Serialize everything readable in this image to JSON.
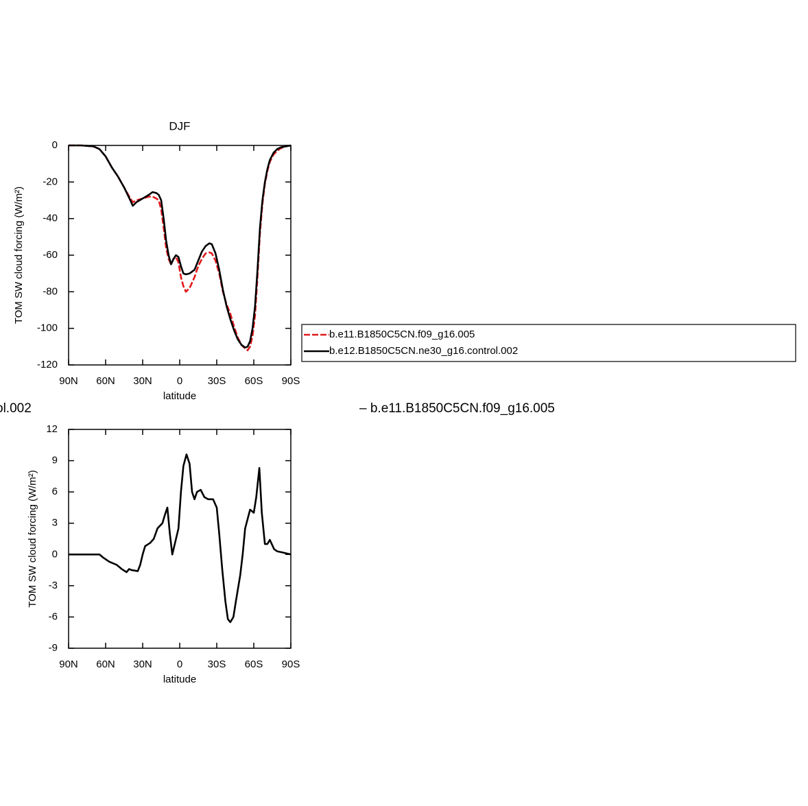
{
  "chart_data": [
    {
      "type": "line",
      "title": "DJF",
      "xlabel": "latitude",
      "ylabel": "TOM SW cloud forcing (W/m²)",
      "x": [
        90,
        80,
        70,
        65,
        60,
        55,
        50,
        45,
        40,
        38,
        35,
        30,
        25,
        22,
        19,
        17,
        15,
        13,
        11,
        9,
        7,
        5,
        3,
        1,
        -1,
        -3,
        -5,
        -8,
        -12,
        -15,
        -18,
        -21,
        -24,
        -26,
        -29,
        -32,
        -35,
        -38,
        -41,
        -44,
        -47,
        -50,
        -53,
        -55,
        -57,
        -59,
        -61,
        -63,
        -65,
        -67,
        -69,
        -71,
        -73,
        -76,
        -79,
        -82,
        -86,
        -90
      ],
      "series": [
        {
          "name": "b.e11.B1850C5CN.f09_g16.005",
          "color": "#e0191b",
          "dashed": true,
          "values": [
            0,
            0,
            -0.5,
            -2,
            -6,
            -12,
            -17,
            -23,
            -29,
            -31,
            -30,
            -29,
            -28,
            -28,
            -29,
            -30,
            -35,
            -45,
            -56,
            -62,
            -65,
            -62,
            -61,
            -64,
            -72,
            -77,
            -80,
            -78,
            -72,
            -66,
            -62,
            -59,
            -58.5,
            -59,
            -63,
            -70,
            -80,
            -87,
            -92,
            -99,
            -105,
            -109,
            -111,
            -112,
            -110,
            -104,
            -93,
            -72,
            -48,
            -32,
            -21,
            -14,
            -9,
            -5,
            -3,
            -1.5,
            -0.5,
            0
          ]
        },
        {
          "name": "b.e12.B1850C5CN.ne30_g16.control.002",
          "color": "#000000",
          "dashed": false,
          "values": [
            0,
            0,
            -0.5,
            -2,
            -6,
            -12,
            -17,
            -23,
            -30,
            -33,
            -31,
            -29,
            -27,
            -25.5,
            -26,
            -27,
            -30,
            -40,
            -52,
            -60,
            -65,
            -62,
            -60,
            -61,
            -66,
            -70,
            -70.5,
            -70,
            -68,
            -63,
            -58,
            -55,
            -53.5,
            -54,
            -59,
            -68,
            -79,
            -88,
            -95,
            -101,
            -106,
            -109,
            -110.5,
            -110,
            -107,
            -100,
            -88,
            -68,
            -45,
            -30,
            -20,
            -13,
            -8,
            -4,
            -2,
            -1,
            -0.5,
            0
          ]
        }
      ],
      "xlim": [
        90,
        -90
      ],
      "xticks": [
        {
          "value": 90,
          "label": "90N"
        },
        {
          "value": 60,
          "label": "60N"
        },
        {
          "value": 30,
          "label": "30N"
        },
        0,
        {
          "value": -30,
          "label": "30S"
        },
        {
          "value": -60,
          "label": "60S"
        },
        {
          "value": -90,
          "label": "90S"
        }
      ],
      "ylim": [
        -120,
        0
      ],
      "yticks": [
        0,
        -20,
        -40,
        -60,
        -80,
        -100,
        -120
      ],
      "legend": "right"
    },
    {
      "type": "line",
      "xlabel": "latitude",
      "ylabel": "TOM SW cloud forcing (W/m²)",
      "annotations": [
        "ol.002",
        "– b.e11.B1850C5CN.f09_g16.005"
      ],
      "x": [
        90,
        65,
        62,
        57,
        51,
        47,
        43,
        41,
        39,
        34,
        32,
        30,
        28,
        24,
        21,
        18,
        14,
        12,
        10,
        8,
        6,
        3,
        1,
        -1,
        -3,
        -5.5,
        -8,
        -10,
        -12,
        -14,
        -17,
        -20,
        -23,
        -27,
        -30,
        -32,
        -34.5,
        -37,
        -39,
        -41,
        -43.5,
        -45.5,
        -49,
        -51,
        -53,
        -57,
        -60,
        -62,
        -64.5,
        -66.5,
        -69,
        -71,
        -73,
        -76.5,
        -79,
        -83,
        -90
      ],
      "series": [
        {
          "color": "#000000",
          "dashed": false,
          "values": [
            0,
            0,
            -0.3,
            -0.7,
            -1.0,
            -1.4,
            -1.7,
            -1.4,
            -1.5,
            -1.6,
            -1.0,
            0,
            0.8,
            1.1,
            1.5,
            2.5,
            3.0,
            3.8,
            4.5,
            2.0,
            0,
            1.5,
            2.5,
            6.0,
            8.5,
            9.6,
            8.7,
            6.0,
            5.3,
            6.0,
            6.2,
            5.5,
            5.3,
            5.3,
            4.5,
            2.0,
            -1.5,
            -4.5,
            -6.2,
            -6.5,
            -6.0,
            -4.5,
            -2.0,
            0,
            2.5,
            4.3,
            4.0,
            5.5,
            8.3,
            4.0,
            1.0,
            1.0,
            1.4,
            0.5,
            0.3,
            0.2,
            0
          ]
        }
      ],
      "xlim": [
        90,
        -90
      ],
      "xticks": [
        {
          "value": 90,
          "label": "90N"
        },
        {
          "value": 60,
          "label": "60N"
        },
        {
          "value": 30,
          "label": "30N"
        },
        0,
        {
          "value": -30,
          "label": "30S"
        },
        {
          "value": -60,
          "label": "60S"
        },
        {
          "value": -90,
          "label": "90S"
        }
      ],
      "ylim": [
        -9,
        12
      ],
      "yticks": [
        12,
        9,
        6,
        3,
        0,
        -3,
        -6,
        -9
      ]
    }
  ]
}
